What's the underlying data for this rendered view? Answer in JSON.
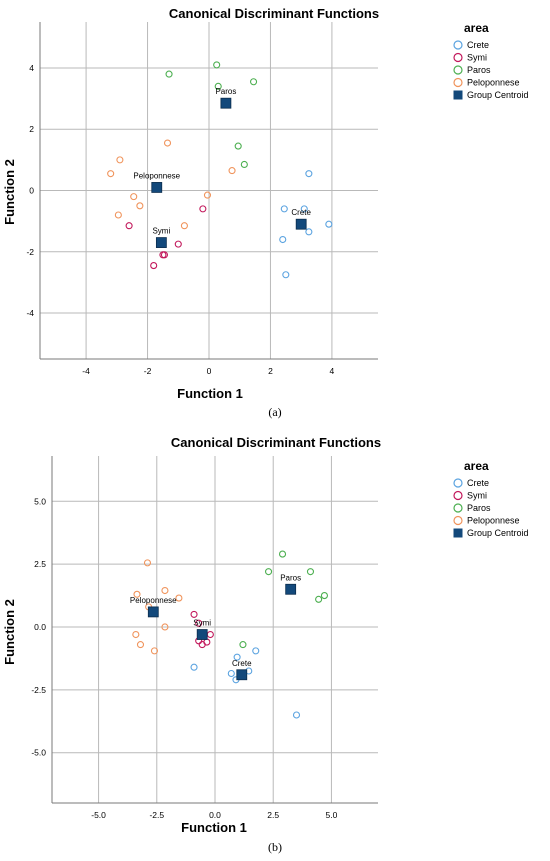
{
  "captions": [
    "(a)",
    "(b)"
  ],
  "chart_data": [
    {
      "type": "scatter",
      "title": "Canonical Discriminant Functions",
      "xlabel": "Function 1",
      "ylabel": "Function 2",
      "xlim": [
        -5.5,
        5.5
      ],
      "ylim": [
        -5.5,
        5.5
      ],
      "xticks": [
        -4,
        -2,
        0,
        2,
        4
      ],
      "yticks": [
        4,
        2,
        0,
        -2,
        -4
      ],
      "xtick_labels": [
        "-4",
        "-2",
        "0",
        "2",
        "4"
      ],
      "ytick_labels": [
        "4",
        "2",
        "0",
        "-2",
        "-4"
      ],
      "grid": true,
      "legend_title": "area",
      "legend_position": "top-right",
      "legend": [
        "Crete",
        "Symi",
        "Paros",
        "Peloponnese",
        "Group Centroid"
      ],
      "series": [
        {
          "name": "Crete",
          "color": "#5ba3e0",
          "points": [
            [
              3.25,
              0.55
            ],
            [
              2.45,
              -0.6
            ],
            [
              3.1,
              -0.6
            ],
            [
              3.9,
              -1.1
            ],
            [
              3.25,
              -1.35
            ],
            [
              2.4,
              -1.6
            ],
            [
              2.5,
              -2.75
            ]
          ]
        },
        {
          "name": "Symi",
          "color": "#c2185b",
          "points": [
            [
              -2.6,
              -1.15
            ],
            [
              -0.2,
              -0.6
            ],
            [
              -1.5,
              -2.1
            ],
            [
              -1.45,
              -2.1
            ],
            [
              -1.0,
              -1.75
            ],
            [
              -1.8,
              -2.45
            ]
          ]
        },
        {
          "name": "Paros",
          "color": "#4caf50",
          "points": [
            [
              -1.3,
              3.8
            ],
            [
              0.25,
              4.1
            ],
            [
              1.45,
              3.55
            ],
            [
              0.3,
              3.4
            ],
            [
              0.95,
              1.45
            ],
            [
              1.15,
              0.85
            ]
          ]
        },
        {
          "name": "Peloponnese",
          "color": "#f0945c",
          "points": [
            [
              -2.9,
              1.0
            ],
            [
              -3.2,
              0.55
            ],
            [
              -1.35,
              1.55
            ],
            [
              -2.45,
              -0.2
            ],
            [
              -2.95,
              -0.8
            ],
            [
              -2.25,
              -0.5
            ],
            [
              -0.05,
              -0.15
            ],
            [
              -0.8,
              -1.15
            ],
            [
              0.75,
              0.65
            ]
          ]
        }
      ],
      "centroids": [
        {
          "label": "Paros",
          "x": 0.55,
          "y": 2.85
        },
        {
          "label": "Peloponnese",
          "x": -1.7,
          "y": 0.1
        },
        {
          "label": "Crete",
          "x": 3.0,
          "y": -1.1
        },
        {
          "label": "Symi",
          "x": -1.55,
          "y": -1.7
        }
      ],
      "centroid_color": "#13497b"
    },
    {
      "type": "scatter",
      "title": "Canonical Discriminant Functions",
      "xlabel": "Function 1",
      "ylabel": "Function 2",
      "xlim": [
        -7.0,
        7.0
      ],
      "ylim": [
        -7.0,
        6.8
      ],
      "xticks": [
        -5,
        -2.5,
        0,
        2.5,
        5
      ],
      "yticks": [
        5,
        2.5,
        0,
        -2.5,
        -5
      ],
      "xtick_labels": [
        "-5.0",
        "-2.5",
        "0.0",
        "2.5",
        "5.0"
      ],
      "ytick_labels": [
        "5.0",
        "2.5",
        "0.0",
        "-2.5",
        "-5.0"
      ],
      "grid": true,
      "legend_title": "area",
      "legend_position": "top-right",
      "legend": [
        "Crete",
        "Symi",
        "Paros",
        "Peloponnese",
        "Group Centroid"
      ],
      "series": [
        {
          "name": "Crete",
          "color": "#5ba3e0",
          "points": [
            [
              1.75,
              -0.95
            ],
            [
              1.45,
              -1.75
            ],
            [
              0.95,
              -1.2
            ],
            [
              0.7,
              -1.85
            ],
            [
              0.9,
              -2.1
            ],
            [
              -0.9,
              -1.6
            ],
            [
              3.5,
              -3.5
            ]
          ]
        },
        {
          "name": "Symi",
          "color": "#c2185b",
          "points": [
            [
              -0.9,
              0.5
            ],
            [
              -0.7,
              0.15
            ],
            [
              -0.2,
              -0.3
            ],
            [
              -0.35,
              -0.6
            ],
            [
              -0.55,
              -0.7
            ],
            [
              -0.7,
              -0.55
            ]
          ]
        },
        {
          "name": "Paros",
          "color": "#4caf50",
          "points": [
            [
              2.3,
              2.2
            ],
            [
              2.9,
              2.9
            ],
            [
              4.1,
              2.2
            ],
            [
              4.7,
              1.25
            ],
            [
              4.45,
              1.1
            ],
            [
              1.2,
              -0.7
            ]
          ]
        },
        {
          "name": "Peloponnese",
          "color": "#f0945c",
          "points": [
            [
              -2.9,
              2.55
            ],
            [
              -3.35,
              1.3
            ],
            [
              -2.15,
              1.45
            ],
            [
              -1.55,
              1.15
            ],
            [
              -2.85,
              0.8
            ],
            [
              -2.15,
              0.0
            ],
            [
              -3.4,
              -0.3
            ],
            [
              -3.2,
              -0.7
            ],
            [
              -2.6,
              -0.95
            ]
          ]
        }
      ],
      "centroids": [
        {
          "label": "Paros",
          "x": 3.25,
          "y": 1.5
        },
        {
          "label": "Peloponnese",
          "x": -2.65,
          "y": 0.6
        },
        {
          "label": "Symi",
          "x": -0.55,
          "y": -0.3
        },
        {
          "label": "Crete",
          "x": 1.15,
          "y": -1.9
        }
      ],
      "centroid_color": "#13497b"
    }
  ]
}
